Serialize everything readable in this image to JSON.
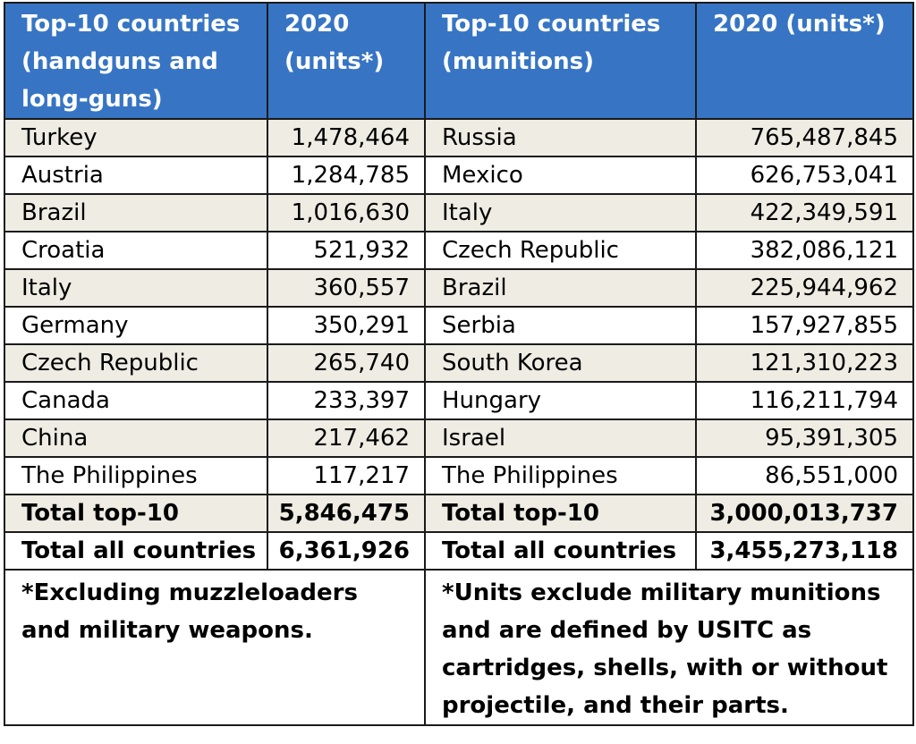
{
  "headers": {
    "guns_country": "Top-10 countries (handguns and long-guns)",
    "guns_units": "2020 (units*)",
    "ammo_country": "Top-10 countries (munitions)",
    "ammo_units": "2020 (units*)"
  },
  "rows": [
    {
      "gun_country": "Turkey",
      "gun_units": "1,478,464",
      "ammo_country": "Russia",
      "ammo_units": "765,487,845"
    },
    {
      "gun_country": "Austria",
      "gun_units": "1,284,785",
      "ammo_country": "Mexico",
      "ammo_units": "626,753,041"
    },
    {
      "gun_country": "Brazil",
      "gun_units": "1,016,630",
      "ammo_country": "Italy",
      "ammo_units": "422,349,591"
    },
    {
      "gun_country": "Croatia",
      "gun_units": "521,932",
      "ammo_country": "Czech Republic",
      "ammo_units": "382,086,121"
    },
    {
      "gun_country": "Italy",
      "gun_units": "360,557",
      "ammo_country": "Brazil",
      "ammo_units": "225,944,962"
    },
    {
      "gun_country": "Germany",
      "gun_units": "350,291",
      "ammo_country": "Serbia",
      "ammo_units": "157,927,855"
    },
    {
      "gun_country": "Czech Republic",
      "gun_units": "265,740",
      "ammo_country": "South Korea",
      "ammo_units": "121,310,223"
    },
    {
      "gun_country": "Canada",
      "gun_units": "233,397",
      "ammo_country": "Hungary",
      "ammo_units": "116,211,794"
    },
    {
      "gun_country": "China",
      "gun_units": "217,462",
      "ammo_country": "Israel",
      "ammo_units": "95,391,305"
    },
    {
      "gun_country": "The Philippines",
      "gun_units": "117,217",
      "ammo_country": "The Philippines",
      "ammo_units": "86,551,000"
    }
  ],
  "totals": {
    "top10_label": "Total top-10",
    "top10_guns": "5,846,475",
    "top10_ammo": "3,000,013,737",
    "all_label": "Total all countries",
    "all_guns": "6,361,926",
    "all_ammo": "3,455,273,118"
  },
  "notes": {
    "guns": "*Excluding muzzleloaders and military weapons.",
    "ammo": "*Units exclude military munitions and are defined by USITC as cartridges, shells, with or without projectile, and their parts."
  },
  "colors": {
    "header_bg": "#3775c4",
    "shade_row": "#eeece3"
  }
}
